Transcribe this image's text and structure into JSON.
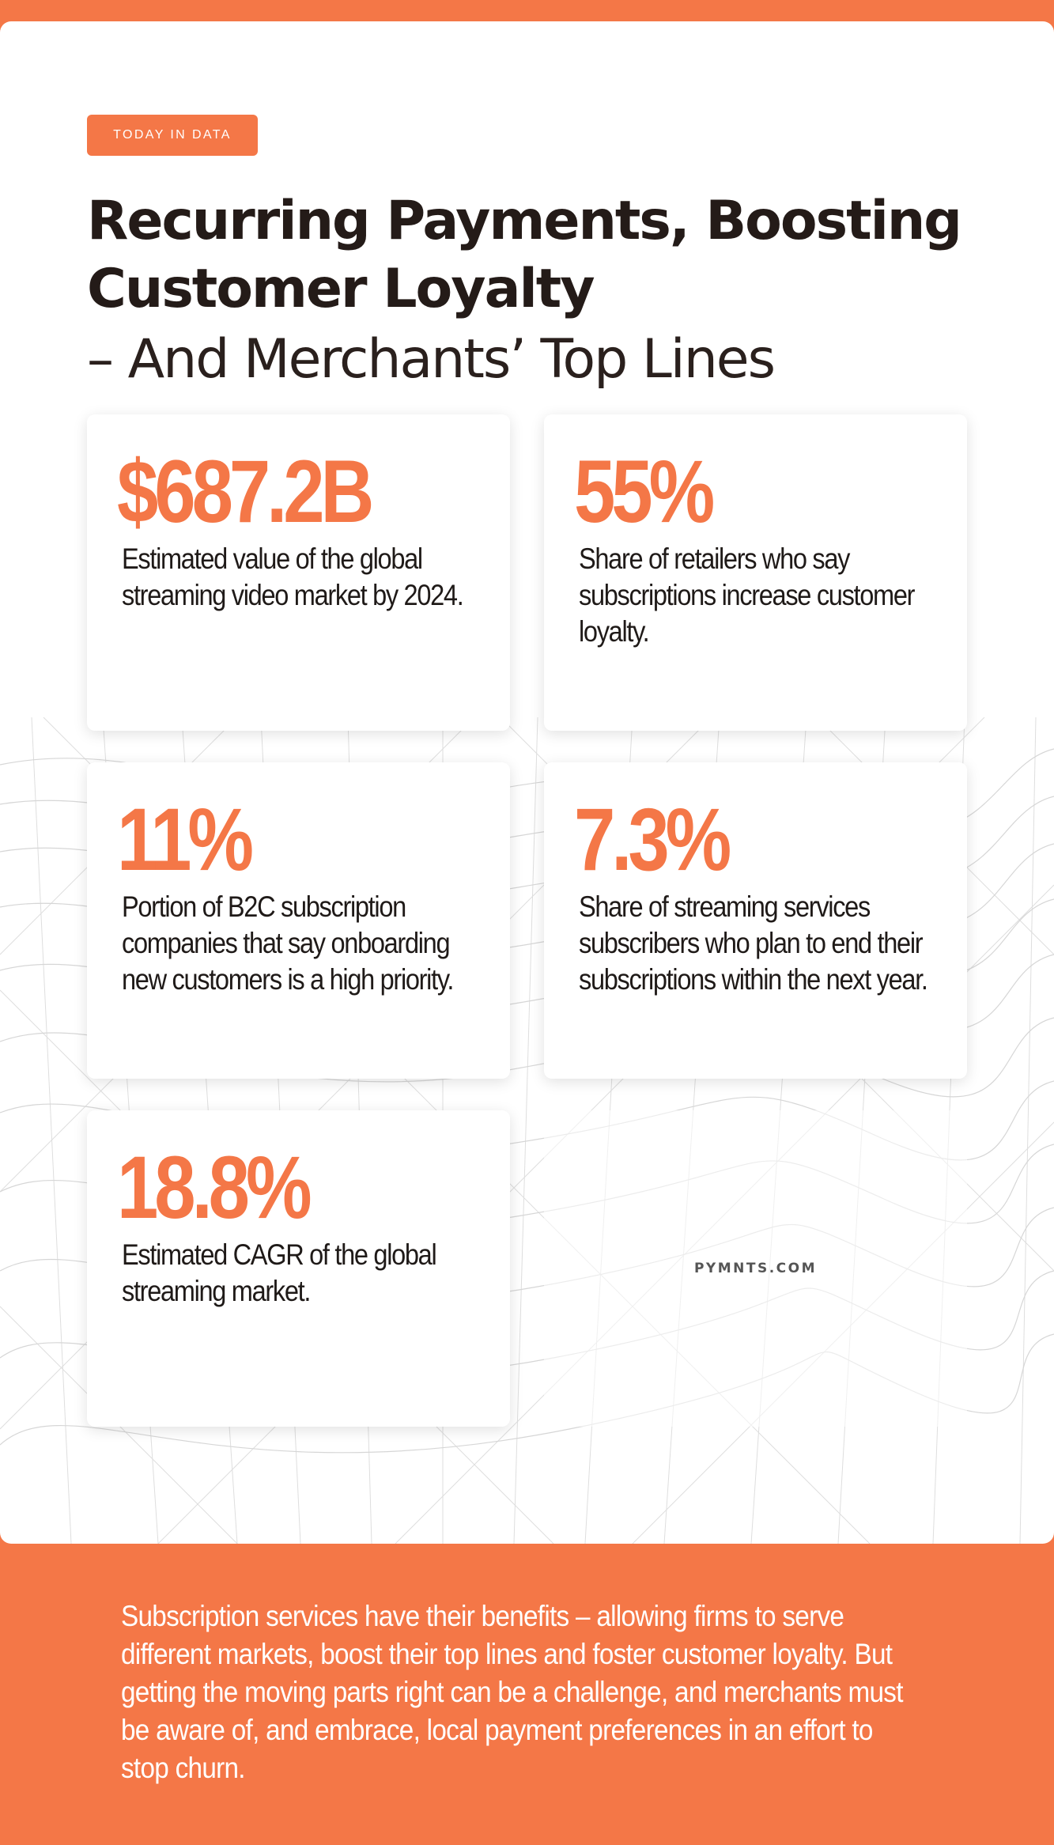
{
  "tag": "TODAY IN DATA",
  "title": {
    "line1": "Recurring Payments, Boosting",
    "line2": "Customer Loyalty",
    "line3": "– And Merchants’ Top Lines"
  },
  "stats": [
    {
      "value": "$687.2B",
      "description": "Estimated value of the global streaming video market by 2024."
    },
    {
      "value": "55%",
      "description": "Share of retailers who say subscriptions increase customer loyalty."
    },
    {
      "value": "11%",
      "description": "Portion of B2C subscription companies that say onboarding new customers is a high priority."
    },
    {
      "value": "7.3%",
      "description": "Share of streaming services subscribers who plan to end their subscriptions within the next year."
    },
    {
      "value": "18.8%",
      "description": "Estimated CAGR of the global streaming market."
    }
  ],
  "logo": "PYMNTS.COM",
  "footer": "Subscription services have their benefits – allowing firms to serve different markets, boost their top lines and foster customer loyalty. But getting the moving parts right can be a challenge, and merchants must be aware of, and embrace, local payment preferences in an effort to stop churn.",
  "colors": {
    "accent": "#f47747",
    "text_dark": "#241b18",
    "background": "#ffffff"
  }
}
